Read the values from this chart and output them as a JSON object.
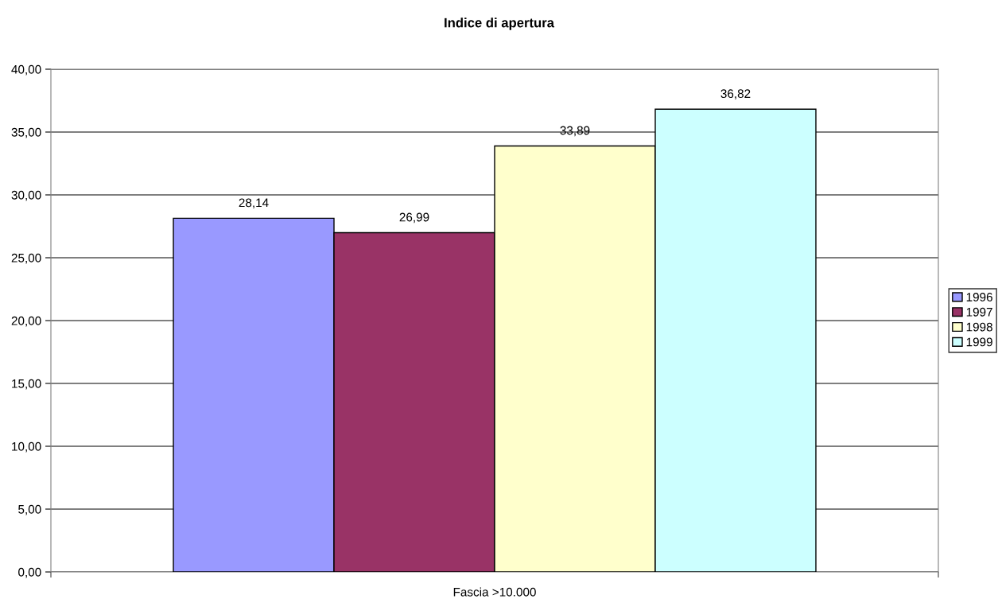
{
  "chart_data": {
    "type": "bar",
    "title": "Indice di apertura",
    "categories": [
      "Fascia >10.000"
    ],
    "series": [
      {
        "name": "1996",
        "color": "#9999ff",
        "values": [
          28.14
        ],
        "value_labels": [
          "28,14"
        ]
      },
      {
        "name": "1997",
        "color": "#993366",
        "values": [
          26.99
        ],
        "value_labels": [
          "26,99"
        ]
      },
      {
        "name": "1998",
        "color": "#ffffcc",
        "values": [
          33.89
        ],
        "value_labels": [
          "33,89"
        ]
      },
      {
        "name": "1999",
        "color": "#ccffff",
        "values": [
          36.82
        ],
        "value_labels": [
          "36,82"
        ]
      }
    ],
    "ylim": [
      0,
      40
    ],
    "yticks": [
      {
        "value": 0,
        "label": "0,00"
      },
      {
        "value": 5,
        "label": "5,00"
      },
      {
        "value": 10,
        "label": "10,00"
      },
      {
        "value": 15,
        "label": "15,00"
      },
      {
        "value": 20,
        "label": "20,00"
      },
      {
        "value": 25,
        "label": "25,00"
      },
      {
        "value": 30,
        "label": "30,00"
      },
      {
        "value": 35,
        "label": "35,00"
      },
      {
        "value": 40,
        "label": "40,00"
      }
    ],
    "grid": "y",
    "legend": "right"
  }
}
